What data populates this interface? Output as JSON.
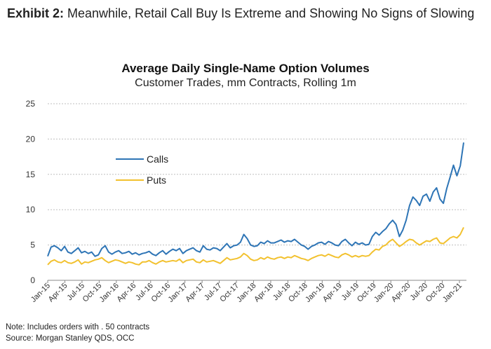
{
  "exhibit": {
    "label": "Exhibit 2:",
    "text": "Meanwhile, Retail Call Buy Is Extreme and Showing No Signs of Slowing"
  },
  "notes": {
    "note": "Note: Includes orders with . 50 contracts",
    "source": "Source: Morgan Stanley QDS, OCC"
  },
  "colors": {
    "calls": "#2E75B6",
    "puts": "#F2C12E",
    "grid": "#bfbfbf",
    "axis": "#888888"
  },
  "chart_data": {
    "type": "line",
    "title": "Average Daily Single-Name Option Volumes",
    "subtitle": "Customer Trades, mm Contracts, Rolling 1m",
    "xlabel": "",
    "ylabel": "",
    "ylim": [
      0,
      25
    ],
    "yticks": [
      0,
      5,
      10,
      15,
      20,
      25
    ],
    "grid": true,
    "legend_position": "upper-left",
    "x_ticks": [
      "Jan-15",
      "Apr-15",
      "Jul-15",
      "Oct-15",
      "Jan-16",
      "Apr-16",
      "Jul-16",
      "Oct-16",
      "Jan-17",
      "Apr-17",
      "Jul-17",
      "Oct-17",
      "Jan-18",
      "Apr-18",
      "Jul-18",
      "Oct-18",
      "Jan-19",
      "Apr-19",
      "Jul-19",
      "Oct-19",
      "Jan-20",
      "Apr-20",
      "Jul-20",
      "Oct-20",
      "Jan-21"
    ],
    "series": [
      {
        "name": "Calls",
        "color": "#2E75B6",
        "values": [
          3.4,
          4.7,
          4.9,
          4.6,
          4.2,
          4.8,
          4.0,
          3.8,
          4.2,
          4.6,
          3.9,
          4.1,
          3.8,
          4.0,
          3.4,
          3.6,
          4.5,
          4.9,
          4.0,
          3.7,
          4.0,
          4.2,
          3.8,
          3.9,
          4.1,
          3.7,
          3.9,
          3.6,
          3.8,
          3.9,
          4.1,
          3.7,
          3.5,
          3.9,
          4.2,
          3.7,
          4.1,
          4.4,
          4.2,
          4.5,
          3.8,
          4.2,
          4.4,
          4.6,
          4.2,
          4.0,
          4.9,
          4.4,
          4.3,
          4.6,
          4.5,
          4.2,
          4.7,
          5.2,
          4.6,
          4.9,
          5.0,
          5.4,
          6.5,
          5.9,
          5.0,
          4.8,
          4.9,
          5.4,
          5.2,
          5.6,
          5.3,
          5.3,
          5.5,
          5.7,
          5.4,
          5.6,
          5.5,
          5.8,
          5.4,
          5.0,
          4.8,
          4.4,
          4.8,
          5.0,
          5.3,
          5.4,
          5.1,
          5.5,
          5.3,
          5.0,
          4.9,
          5.5,
          5.8,
          5.3,
          4.9,
          5.4,
          5.1,
          5.3,
          5.0,
          5.1,
          6.2,
          6.8,
          6.4,
          6.9,
          7.3,
          8.0,
          8.5,
          7.9,
          6.2,
          7.1,
          8.5,
          10.6,
          11.8,
          11.3,
          10.6,
          11.9,
          12.2,
          11.2,
          12.5,
          13.1,
          11.5,
          10.9,
          13.0,
          14.6,
          16.3,
          14.8,
          16.2,
          19.5
        ]
      },
      {
        "name": "Puts",
        "color": "#F2C12E",
        "values": [
          2.2,
          2.7,
          2.9,
          2.6,
          2.5,
          2.8,
          2.5,
          2.4,
          2.6,
          2.9,
          2.3,
          2.6,
          2.5,
          2.7,
          2.9,
          3.0,
          3.2,
          2.8,
          2.5,
          2.7,
          2.9,
          2.8,
          2.6,
          2.4,
          2.6,
          2.5,
          2.3,
          2.2,
          2.6,
          2.6,
          2.8,
          2.5,
          2.3,
          2.6,
          2.8,
          2.6,
          2.7,
          2.8,
          2.7,
          3.0,
          2.5,
          2.8,
          2.9,
          3.0,
          2.6,
          2.5,
          2.9,
          2.6,
          2.7,
          2.8,
          2.6,
          2.4,
          2.8,
          3.2,
          2.9,
          3.0,
          3.1,
          3.3,
          3.8,
          3.5,
          3.0,
          2.8,
          2.9,
          3.2,
          3.0,
          3.3,
          3.1,
          3.0,
          3.2,
          3.3,
          3.1,
          3.3,
          3.2,
          3.5,
          3.3,
          3.1,
          3.0,
          2.8,
          3.1,
          3.3,
          3.5,
          3.6,
          3.4,
          3.7,
          3.5,
          3.3,
          3.2,
          3.6,
          3.8,
          3.6,
          3.3,
          3.5,
          3.3,
          3.5,
          3.4,
          3.5,
          4.0,
          4.4,
          4.3,
          4.8,
          5.0,
          5.5,
          5.8,
          5.3,
          4.8,
          5.1,
          5.5,
          5.8,
          5.7,
          5.3,
          5.0,
          5.3,
          5.6,
          5.5,
          5.8,
          6.0,
          5.3,
          5.2,
          5.6,
          6.0,
          6.2,
          6.0,
          6.5,
          7.5
        ]
      }
    ]
  }
}
